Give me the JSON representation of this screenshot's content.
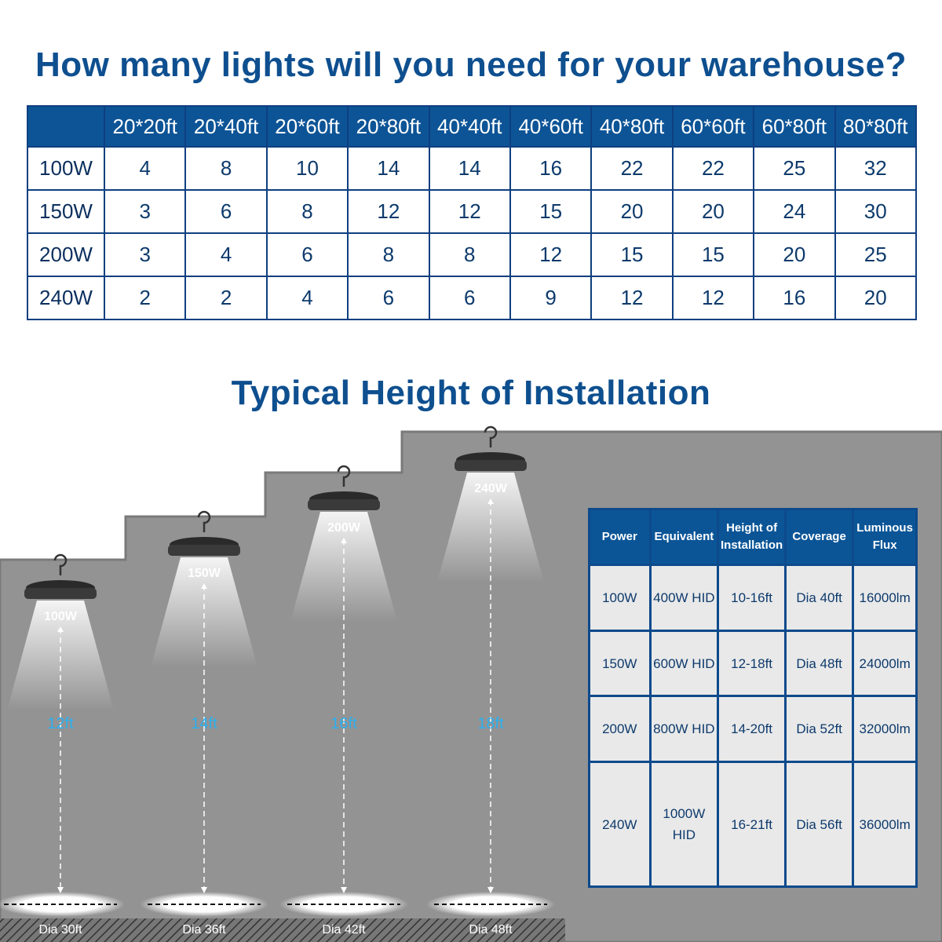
{
  "title": "How many lights will you need for your warehouse?",
  "grid": {
    "columns": [
      "20*20ft",
      "20*40ft",
      "20*60ft",
      "20*80ft",
      "40*40ft",
      "40*60ft",
      "40*80ft",
      "60*60ft",
      "60*80ft",
      "80*80ft"
    ],
    "rows": [
      {
        "power": "100W",
        "values": [
          "4",
          "8",
          "10",
          "14",
          "14",
          "16",
          "22",
          "22",
          "25",
          "32"
        ]
      },
      {
        "power": "150W",
        "values": [
          "3",
          "6",
          "8",
          "12",
          "12",
          "15",
          "20",
          "20",
          "24",
          "30"
        ]
      },
      {
        "power": "200W",
        "values": [
          "3",
          "4",
          "6",
          "8",
          "8",
          "12",
          "15",
          "15",
          "20",
          "25"
        ]
      },
      {
        "power": "240W",
        "values": [
          "2",
          "2",
          "4",
          "6",
          "6",
          "9",
          "12",
          "12",
          "16",
          "20"
        ]
      }
    ]
  },
  "subtitle": "Typical Height of Installation",
  "lamps": [
    {
      "watt": "100W",
      "height": "12ft",
      "dia": "Dia 30ft"
    },
    {
      "watt": "150W",
      "height": "14ft",
      "dia": "Dia 36ft"
    },
    {
      "watt": "200W",
      "height": "16ft",
      "dia": "Dia 42ft"
    },
    {
      "watt": "240W",
      "height": "18ft",
      "dia": "Dia 48ft"
    }
  ],
  "spec": {
    "headers": [
      "Power",
      "Equivalent",
      "Height of Installation",
      "Coverage",
      "Luminous Flux"
    ],
    "rows": [
      [
        "100W",
        "400W HID",
        "10-16ft",
        "Dia 40ft",
        "16000lm"
      ],
      [
        "150W",
        "600W HID",
        "12-18ft",
        "Dia 48ft",
        "24000lm"
      ],
      [
        "200W",
        "800W HID",
        "14-20ft",
        "Dia 52ft",
        "32000lm"
      ],
      [
        "240W",
        "1000W HID",
        "16-21ft",
        "Dia 56ft",
        "36000lm"
      ]
    ]
  },
  "colors": {
    "brand": "#0e4f8f",
    "height_label": "#2ab0f0",
    "wall": "#939393"
  }
}
